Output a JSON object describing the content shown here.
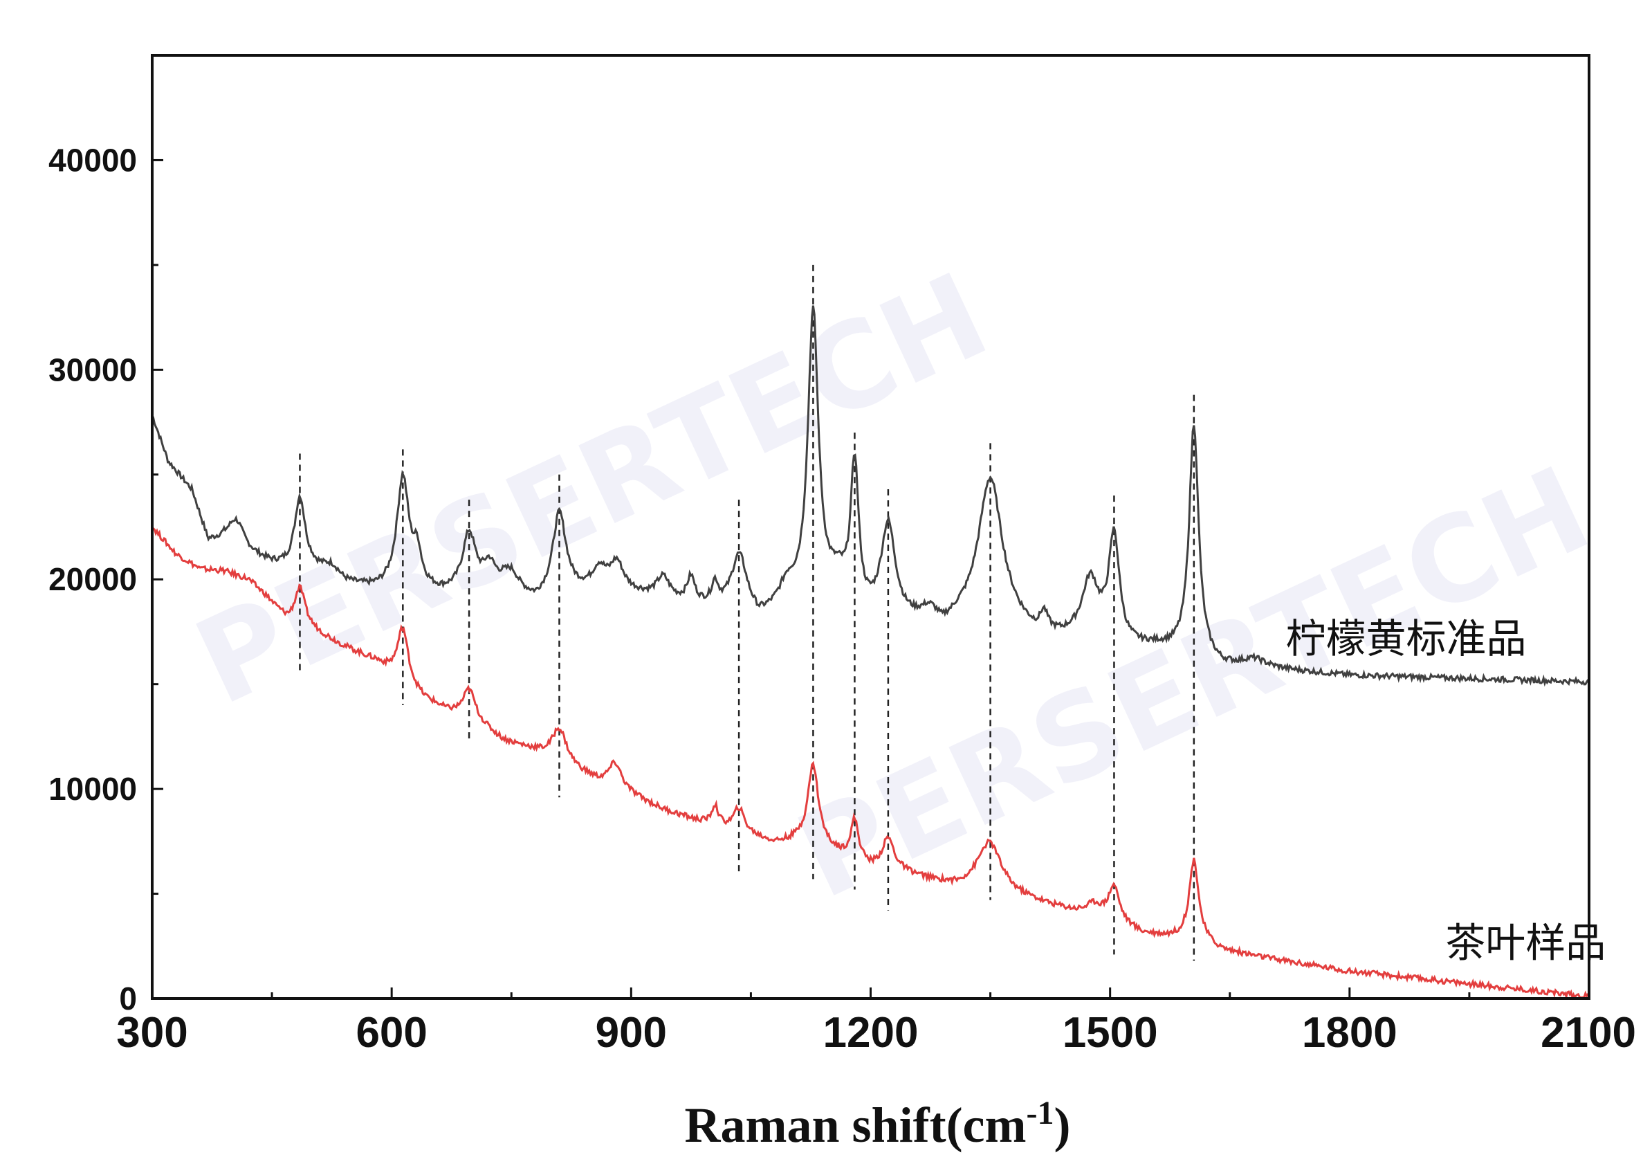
{
  "chart_data": {
    "type": "line",
    "title": "",
    "xlabel": "Raman shift(cm",
    "xlabel_sup": "-1",
    "xlabel_close": ")",
    "ylabel": "",
    "xlim": [
      300,
      2100
    ],
    "ylim": [
      0,
      45000
    ],
    "x_ticks": [
      300,
      600,
      900,
      1200,
      1500,
      1800,
      2100
    ],
    "y_ticks": [
      0,
      10000,
      20000,
      30000,
      40000
    ],
    "watermark": "PERSERTECH",
    "peak_markers": [
      {
        "x": 485,
        "y0": 15500,
        "y1": 26000
      },
      {
        "x": 614,
        "y0": 14000,
        "y1": 26200
      },
      {
        "x": 697,
        "y0": 12200,
        "y1": 23800
      },
      {
        "x": 810,
        "y0": 9600,
        "y1": 25000
      },
      {
        "x": 1035,
        "y0": 6000,
        "y1": 23800
      },
      {
        "x": 1128,
        "y0": 5700,
        "y1": 35000
      },
      {
        "x": 1180,
        "y0": 5200,
        "y1": 27000
      },
      {
        "x": 1222,
        "y0": 4200,
        "y1": 24300
      },
      {
        "x": 1350,
        "y0": 4700,
        "y1": 26500
      },
      {
        "x": 1505,
        "y0": 2100,
        "y1": 24000
      },
      {
        "x": 1605,
        "y0": 1800,
        "y1": 28800
      }
    ],
    "series": [
      {
        "name": "柠檬黄标准品",
        "color": "#404040",
        "label_x": 1720,
        "label_y": 16500,
        "baseline": [
          [
            300,
            27800
          ],
          [
            320,
            25600
          ],
          [
            350,
            24200
          ],
          [
            370,
            21800
          ],
          [
            390,
            21800
          ],
          [
            420,
            21200
          ],
          [
            450,
            20700
          ],
          [
            470,
            20500
          ],
          [
            500,
            20400
          ],
          [
            540,
            19700
          ],
          [
            580,
            19500
          ],
          [
            620,
            19600
          ],
          [
            660,
            19300
          ],
          [
            700,
            19300
          ],
          [
            740,
            19700
          ],
          [
            780,
            18900
          ],
          [
            820,
            19300
          ],
          [
            860,
            19500
          ],
          [
            900,
            19300
          ],
          [
            940,
            19000
          ],
          [
            980,
            18700
          ],
          [
            1010,
            18600
          ],
          [
            1040,
            18700
          ],
          [
            1060,
            18000
          ],
          [
            1080,
            18300
          ],
          [
            1100,
            18600
          ],
          [
            1130,
            18800
          ],
          [
            1150,
            18800
          ],
          [
            1170,
            18400
          ],
          [
            1190,
            18000
          ],
          [
            1210,
            17900
          ],
          [
            1240,
            17800
          ],
          [
            1270,
            17800
          ],
          [
            1290,
            17400
          ],
          [
            1310,
            17800
          ],
          [
            1340,
            17900
          ],
          [
            1380,
            17600
          ],
          [
            1410,
            17100
          ],
          [
            1440,
            17100
          ],
          [
            1480,
            17300
          ],
          [
            1520,
            16700
          ],
          [
            1560,
            16700
          ],
          [
            1600,
            16400
          ],
          [
            1640,
            15800
          ],
          [
            1700,
            15700
          ],
          [
            1800,
            15400
          ],
          [
            1900,
            15300
          ],
          [
            2000,
            15200
          ],
          [
            2100,
            15100
          ]
        ],
        "peaks": [
          [
            405,
            1300,
            12
          ],
          [
            485,
            3400,
            8
          ],
          [
            525,
            600,
            14
          ],
          [
            614,
            5200,
            9
          ],
          [
            632,
            1500,
            6
          ],
          [
            697,
            2800,
            10
          ],
          [
            722,
            1000,
            9
          ],
          [
            750,
            700,
            10
          ],
          [
            810,
            3900,
            10
          ],
          [
            860,
            900,
            10
          ],
          [
            882,
            1300,
            10
          ],
          [
            940,
            1000,
            10
          ],
          [
            975,
            1200,
            6
          ],
          [
            1005,
            1000,
            5
          ],
          [
            1035,
            2300,
            11
          ],
          [
            1095,
            900,
            12
          ],
          [
            1128,
            13700,
            8
          ],
          [
            1160,
            1000,
            12
          ],
          [
            1180,
            6900,
            6
          ],
          [
            1222,
            4500,
            11
          ],
          [
            1275,
            500,
            12
          ],
          [
            1350,
            6900,
            18
          ],
          [
            1417,
            900,
            6
          ],
          [
            1475,
            2500,
            12
          ],
          [
            1505,
            5000,
            8
          ],
          [
            1605,
            11000,
            7
          ],
          [
            1680,
            400,
            18
          ]
        ]
      },
      {
        "name": "茶叶样品",
        "color": "#e33e3e",
        "label_x": 1920,
        "label_y": 2000,
        "baseline": [
          [
            300,
            22500
          ],
          [
            330,
            21200
          ],
          [
            360,
            20500
          ],
          [
            390,
            20400
          ],
          [
            420,
            20000
          ],
          [
            440,
            19300
          ],
          [
            470,
            18000
          ],
          [
            500,
            17600
          ],
          [
            540,
            16800
          ],
          [
            580,
            16100
          ],
          [
            610,
            15300
          ],
          [
            640,
            14300
          ],
          [
            670,
            13700
          ],
          [
            700,
            13400
          ],
          [
            740,
            12300
          ],
          [
            780,
            11800
          ],
          [
            820,
            11100
          ],
          [
            860,
            10300
          ],
          [
            900,
            9700
          ],
          [
            940,
            9000
          ],
          [
            980,
            8500
          ],
          [
            1010,
            8200
          ],
          [
            1040,
            7900
          ],
          [
            1080,
            7400
          ],
          [
            1110,
            7500
          ],
          [
            1140,
            7200
          ],
          [
            1170,
            6700
          ],
          [
            1200,
            6200
          ],
          [
            1240,
            6000
          ],
          [
            1280,
            5600
          ],
          [
            1310,
            5400
          ],
          [
            1340,
            5700
          ],
          [
            1380,
            5000
          ],
          [
            1420,
            4500
          ],
          [
            1460,
            4100
          ],
          [
            1500,
            3800
          ],
          [
            1540,
            3100
          ],
          [
            1580,
            2900
          ],
          [
            1610,
            2800
          ],
          [
            1640,
            2300
          ],
          [
            1700,
            1900
          ],
          [
            1800,
            1300
          ],
          [
            1900,
            900
          ],
          [
            2000,
            500
          ],
          [
            2100,
            100
          ]
        ],
        "peaks": [
          [
            485,
            1800,
            8
          ],
          [
            614,
            2500,
            8
          ],
          [
            697,
            1300,
            9
          ],
          [
            810,
            1600,
            11
          ],
          [
            880,
            1200,
            10
          ],
          [
            1005,
            900,
            5
          ],
          [
            1035,
            1100,
            8
          ],
          [
            1128,
            3800,
            8
          ],
          [
            1180,
            1900,
            6
          ],
          [
            1222,
            1500,
            9
          ],
          [
            1350,
            1900,
            16
          ],
          [
            1480,
            500,
            12
          ],
          [
            1505,
            1600,
            8
          ],
          [
            1605,
            3800,
            7
          ]
        ]
      }
    ]
  }
}
